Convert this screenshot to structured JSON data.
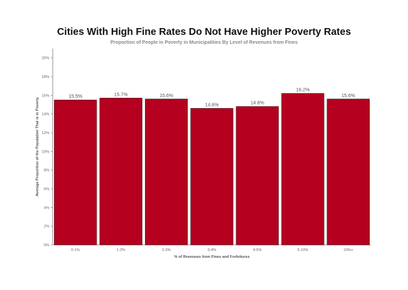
{
  "chart_data": {
    "type": "bar",
    "title": "Cities With High Fine Rates Do Not Have Higher Poverty Rates",
    "subtitle": "Proportion of People in Poverty in Municipalities By Level of Revenues from Fines",
    "xlabel": "% of Revenues from Fines and Forfeitures",
    "ylabel": "Average Proportion of the Population That is in Poverty",
    "categories": [
      "0-1%",
      "1-2%",
      "2-3%",
      "3-4%",
      "4-5%",
      "5-10%",
      "10%+"
    ],
    "values": [
      15.5,
      15.7,
      15.6,
      14.6,
      14.8,
      16.2,
      15.6
    ],
    "data_labels": [
      "15.5%",
      "15.7%",
      "15.6%",
      "14.6%",
      "14.8%",
      "16.2%",
      "15.6%"
    ],
    "yticks": [
      0,
      2,
      4,
      6,
      8,
      10,
      12,
      14,
      16,
      18,
      20
    ],
    "ytick_labels": [
      "0%",
      "2%",
      "4%",
      "6%",
      "8%",
      "10%",
      "12%",
      "14%",
      "16%",
      "18%",
      "20%"
    ],
    "ylim": [
      0,
      21
    ],
    "grid": false,
    "legend": "none",
    "colors": {
      "bar": "#b5001f",
      "bar_edge": "#3a0008",
      "axis": "#777777"
    }
  }
}
